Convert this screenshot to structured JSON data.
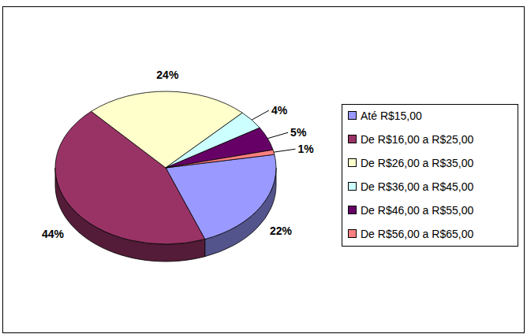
{
  "chart_data": {
    "type": "pie",
    "categories": [
      "Até R$15,00",
      "De R$16,00 a R$25,00",
      "De R$26,00 a R$35,00",
      "De R$36,00 a R$45,00",
      "De R$46,00 a R$55,00",
      "De R$56,00 a R$65,00"
    ],
    "values": [
      22,
      44,
      24,
      4,
      5,
      1
    ],
    "value_labels": [
      "22%",
      "44%",
      "24%",
      "4%",
      "5%",
      "1%"
    ],
    "colors": [
      "#9999ff",
      "#993366",
      "#ffffcc",
      "#ccffff",
      "#660066",
      "#ff8080"
    ],
    "data_labels": true,
    "legend": "right"
  }
}
